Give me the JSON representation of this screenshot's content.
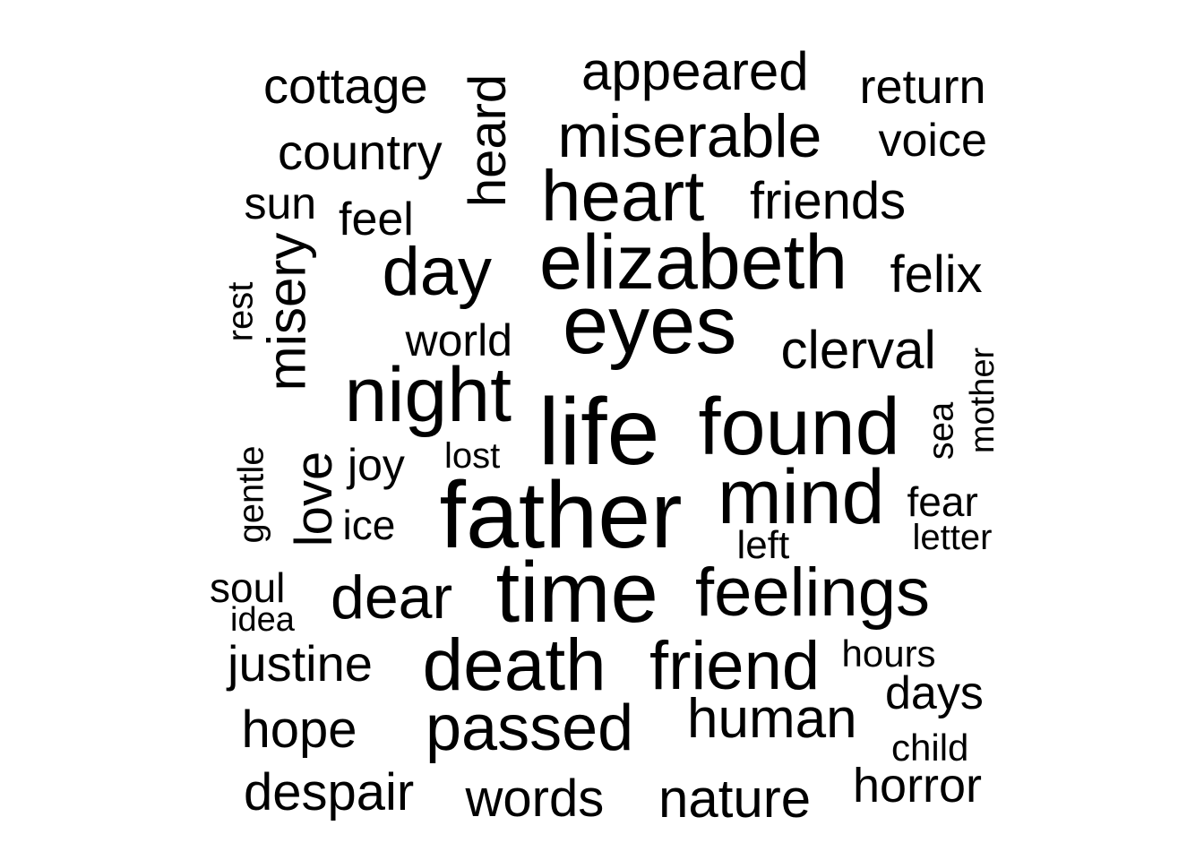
{
  "word_cloud": {
    "text_color": "#000000",
    "background": "#ffffff",
    "words": [
      {
        "text": "cottage"
      },
      {
        "text": "heard",
        "vertical": true
      },
      {
        "text": "appeared"
      },
      {
        "text": "return"
      },
      {
        "text": "country"
      },
      {
        "text": "miserable"
      },
      {
        "text": "voice"
      },
      {
        "text": "sun"
      },
      {
        "text": "feel"
      },
      {
        "text": "heart"
      },
      {
        "text": "friends"
      },
      {
        "text": "misery",
        "vertical": true
      },
      {
        "text": "day"
      },
      {
        "text": "elizabeth"
      },
      {
        "text": "felix"
      },
      {
        "text": "rest",
        "vertical": true
      },
      {
        "text": "eyes"
      },
      {
        "text": "world"
      },
      {
        "text": "clerval"
      },
      {
        "text": "night"
      },
      {
        "text": "life"
      },
      {
        "text": "found"
      },
      {
        "text": "sea",
        "vertical": true
      },
      {
        "text": "mother",
        "vertical": true
      },
      {
        "text": "gentle",
        "vertical": true
      },
      {
        "text": "love",
        "vertical": true
      },
      {
        "text": "joy"
      },
      {
        "text": "lost"
      },
      {
        "text": "mind"
      },
      {
        "text": "fear"
      },
      {
        "text": "father"
      },
      {
        "text": "ice"
      },
      {
        "text": "left"
      },
      {
        "text": "letter"
      },
      {
        "text": "soul"
      },
      {
        "text": "time"
      },
      {
        "text": "feelings"
      },
      {
        "text": "dear"
      },
      {
        "text": "idea"
      },
      {
        "text": "justine"
      },
      {
        "text": "death"
      },
      {
        "text": "friend"
      },
      {
        "text": "hours"
      },
      {
        "text": "days"
      },
      {
        "text": "hope"
      },
      {
        "text": "passed"
      },
      {
        "text": "human"
      },
      {
        "text": "child"
      },
      {
        "text": "despair"
      },
      {
        "text": "words"
      },
      {
        "text": "nature"
      },
      {
        "text": "horror"
      }
    ]
  }
}
